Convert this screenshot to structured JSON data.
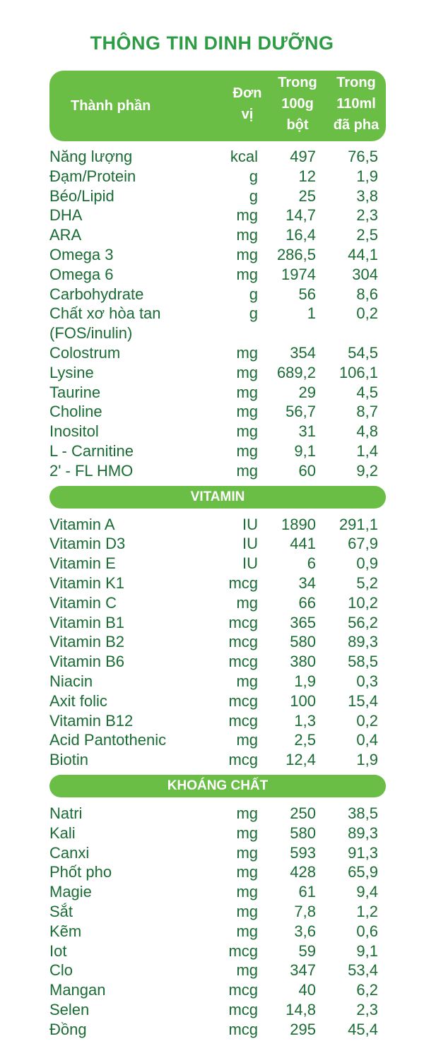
{
  "title": "THÔNG TIN DINH DƯỠNG",
  "header": {
    "component": "Thành phần",
    "unit": "Đơn\nvị",
    "per_100g": "Trong\n100g\nbột",
    "per_110ml": "Trong\n110ml\nđã pha"
  },
  "sections": [
    {
      "rows": [
        [
          "Năng lượng",
          "kcal",
          "497",
          "76,5"
        ],
        [
          "Đạm/Protein",
          "g",
          "12",
          "1,9"
        ],
        [
          "Béo/Lipid",
          "g",
          "25",
          "3,8"
        ],
        [
          "DHA",
          "mg",
          "14,7",
          "2,3"
        ],
        [
          "ARA",
          "mg",
          "16,4",
          "2,5"
        ],
        [
          "Omega 3",
          "mg",
          "286,5",
          "44,1"
        ],
        [
          "Omega 6",
          "mg",
          "1974",
          "304"
        ],
        [
          "Carbohydrate",
          "g",
          "56",
          "8,6"
        ],
        [
          "Chất xơ hòa tan\n(FOS/inulin)",
          "g",
          "1",
          "0,2"
        ],
        [
          "Colostrum",
          "mg",
          "354",
          "54,5"
        ],
        [
          "Lysine",
          "mg",
          "689,2",
          "106,1"
        ],
        [
          "Taurine",
          "mg",
          "29",
          "4,5"
        ],
        [
          "Choline",
          "mg",
          "56,7",
          "8,7"
        ],
        [
          "Inositol",
          "mg",
          "31",
          "4,8"
        ],
        [
          "L - Carnitine",
          "mg",
          "9,1",
          "1,4"
        ],
        [
          "2' - FL HMO",
          "mg",
          "60",
          "9,2"
        ]
      ]
    },
    {
      "heading": "VITAMIN",
      "rows": [
        [
          "Vitamin A",
          "IU",
          "1890",
          "291,1"
        ],
        [
          "Vitamin D3",
          "IU",
          "441",
          "67,9"
        ],
        [
          "Vitamin E",
          "IU",
          "6",
          "0,9"
        ],
        [
          "Vitamin K1",
          "mcg",
          "34",
          "5,2"
        ],
        [
          "Vitamin C",
          "mg",
          "66",
          "10,2"
        ],
        [
          "Vitamin B1",
          "mcg",
          "365",
          "56,2"
        ],
        [
          "Vitamin B2",
          "mcg",
          "580",
          "89,3"
        ],
        [
          "Vitamin B6",
          "mcg",
          "380",
          "58,5"
        ],
        [
          "Niacin",
          "mg",
          "1,9",
          "0,3"
        ],
        [
          "Axit folic",
          "mcg",
          "100",
          "15,4"
        ],
        [
          "Vitamin B12",
          "mcg",
          "1,3",
          "0,2"
        ],
        [
          "Acid Pantothenic",
          "mg",
          "2,5",
          "0,4"
        ],
        [
          "Biotin",
          "mcg",
          "12,4",
          "1,9"
        ]
      ]
    },
    {
      "heading": "KHOÁNG CHẤT",
      "rows": [
        [
          "Natri",
          "mg",
          "250",
          "38,5"
        ],
        [
          "Kali",
          "mg",
          "580",
          "89,3"
        ],
        [
          "Canxi",
          "mg",
          "593",
          "91,3"
        ],
        [
          "Phốt pho",
          "mg",
          "428",
          "65,9"
        ],
        [
          "Magie",
          "mg",
          "61",
          "9,4"
        ],
        [
          "Sắt",
          "mg",
          "7,8",
          "1,2"
        ],
        [
          "Kẽm",
          "mg",
          "3,6",
          "0,6"
        ],
        [
          "Iot",
          "mcg",
          "59",
          "9,1"
        ],
        [
          "Clo",
          "mg",
          "347",
          "53,4"
        ],
        [
          "Mangan",
          "mcg",
          "40",
          "6,2"
        ],
        [
          "Selen",
          "mcg",
          "14,8",
          "2,3"
        ],
        [
          "Đồng",
          "mcg",
          "295",
          "45,4"
        ]
      ]
    }
  ]
}
